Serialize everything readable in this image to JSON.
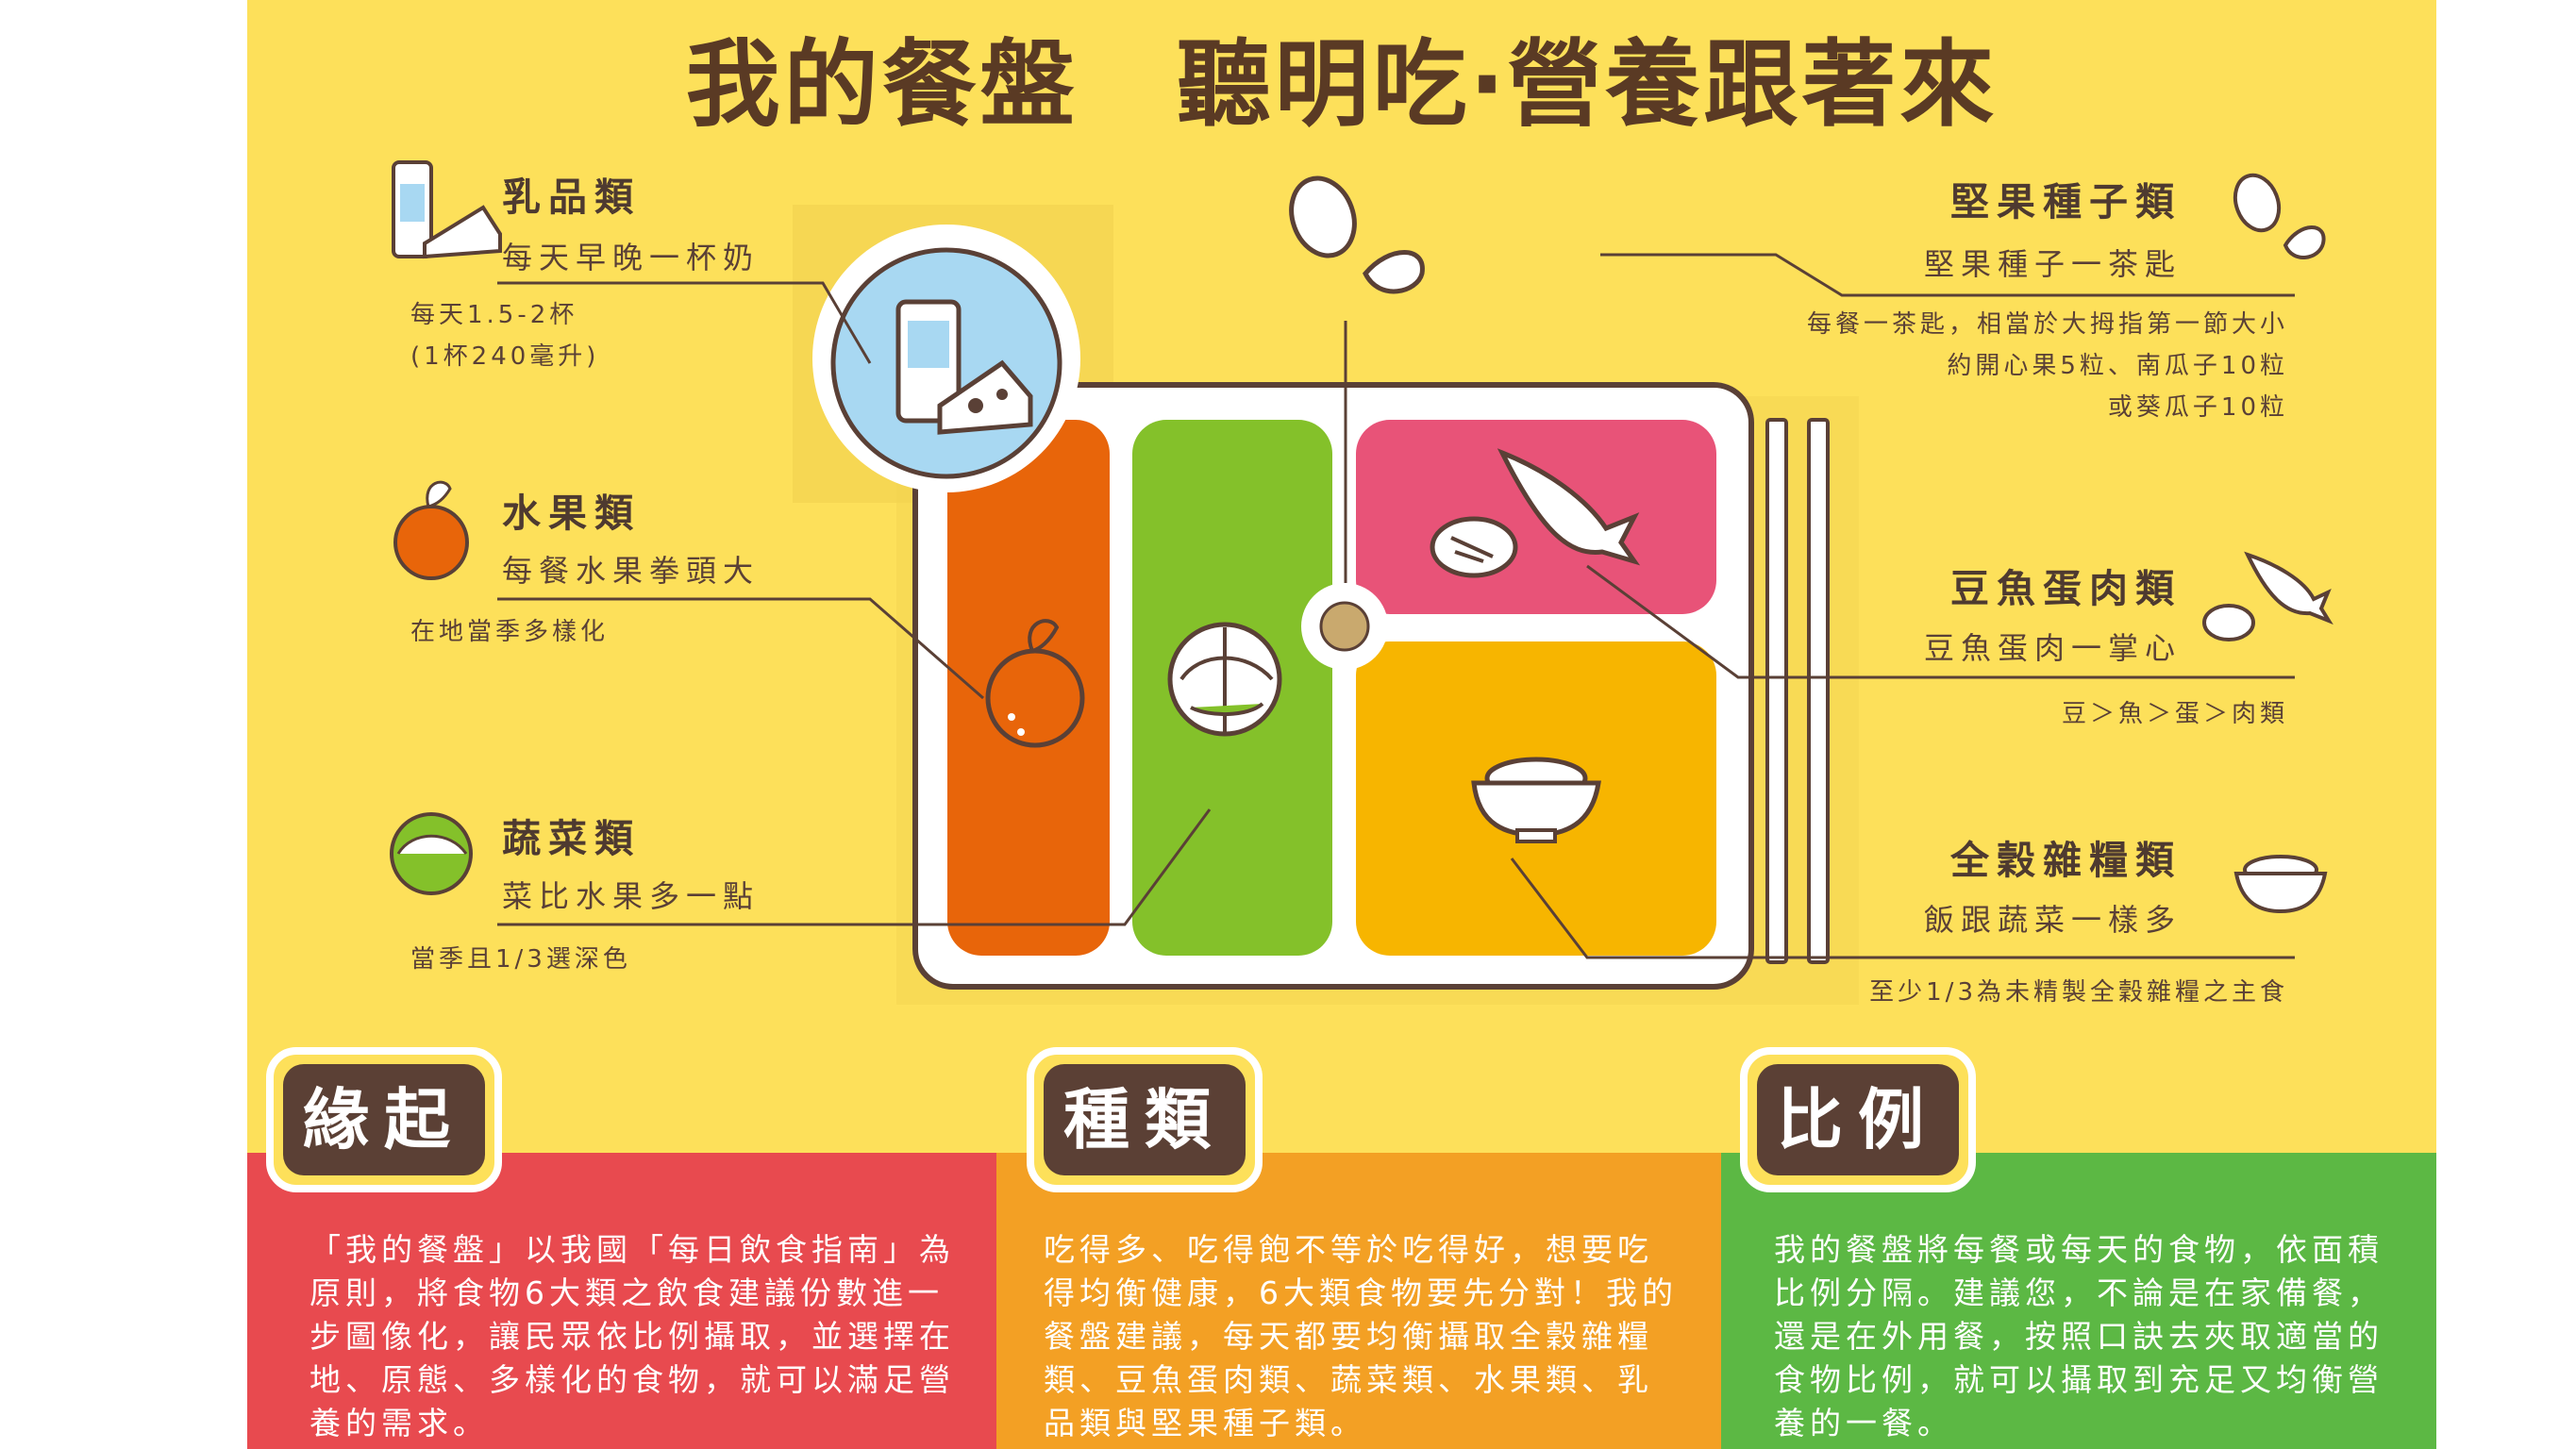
{
  "title": "我的餐盤　聽明吃‧營養跟著來",
  "categories": {
    "dairy": {
      "name": "乳品類",
      "sub": "每天早晚一杯奶",
      "note_line1": "每天1.5-2杯",
      "note_line2": "(1杯240毫升)"
    },
    "fruit": {
      "name": "水果類",
      "sub": "每餐水果拳頭大",
      "note": "在地當季多樣化"
    },
    "vegetable": {
      "name": "蔬菜類",
      "sub": "菜比水果多一點",
      "note": "當季且1/3選深色"
    },
    "nuts": {
      "name": "堅果種子類",
      "sub": "堅果種子一茶匙",
      "note_line1": "每餐一茶匙，相當於大拇指第一節大小",
      "note_line2": "約開心果5粒、南瓜子10粒",
      "note_line3": "或葵瓜子10粒"
    },
    "protein": {
      "name": "豆魚蛋肉類",
      "sub": "豆魚蛋肉一掌心",
      "note": "豆＞魚＞蛋＞肉類"
    },
    "grains": {
      "name": "全穀雜糧類",
      "sub": "飯跟蔬菜一樣多",
      "note": "至少1/3為未精製全穀雜糧之主食"
    }
  },
  "sections": {
    "origin": {
      "label": "緣起",
      "text": "「我的餐盤」以我國「每日飲食指南」為原則，將食物6大類之飲食建議份數進一步圖像化，讓民眾依比例攝取，並選擇在地、原態、多樣化的食物，就可以滿足營養的需求。"
    },
    "types": {
      "label": "種類",
      "text": "吃得多、吃得飽不等於吃得好，想要吃得均衡健康，6大類食物要先分對！我的餐盤建議，每天都要均衡攝取全穀雜糧類、豆魚蛋肉類、蔬菜類、水果類、乳品類與堅果種子類。"
    },
    "ratio": {
      "label": "比例",
      "text": "我的餐盤將每餐或每天的食物，依面積比例分隔。建議您，不論是在家備餐，還是在外用餐，按照口訣去夾取適當的食物比例，就可以攝取到充足又均衡營養的一餐。"
    }
  },
  "colors": {
    "background": "#fde05a",
    "brown": "#5a4036",
    "fruit_orange": "#e8650a",
    "vegetable_green": "#84c12a",
    "protein_pink": "#e85378",
    "grain_yellow": "#f7b500",
    "dairy_blue": "#a8d8f2",
    "origin_red": "#e84a4f",
    "types_orange": "#f3a024",
    "ratio_green": "#5cb844"
  },
  "icons": [
    "milk-cheese-icon",
    "orange-icon",
    "cabbage-icon",
    "pistachio-icon",
    "fish-meat-icon",
    "rice-bowl-icon",
    "chopsticks-icon"
  ]
}
